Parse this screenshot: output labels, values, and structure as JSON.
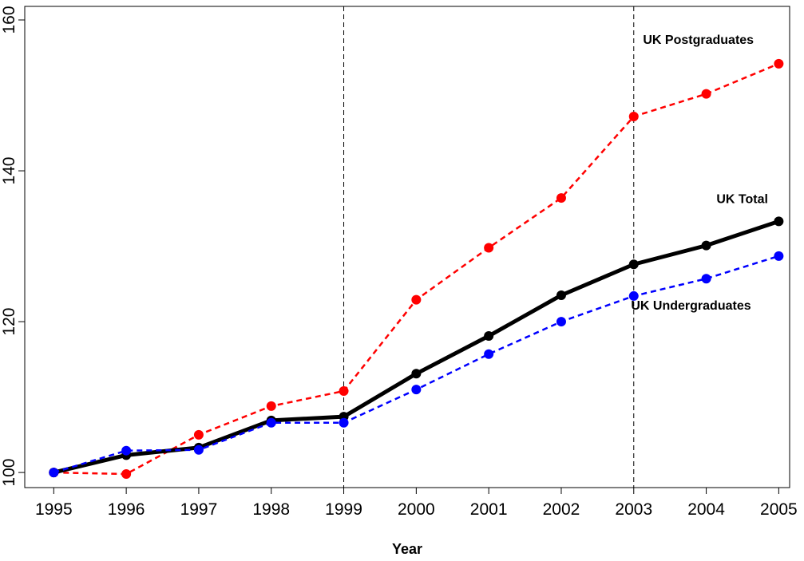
{
  "chart_data": {
    "type": "line",
    "x_label": "Year",
    "x": [
      1995,
      1996,
      1997,
      1998,
      1999,
      2000,
      2001,
      2002,
      2003,
      2004,
      2005
    ],
    "series": [
      {
        "name": "UK Postgraduates",
        "color": "#ff0000",
        "dash": true,
        "values": [
          100,
          99.8,
          105.0,
          108.8,
          110.8,
          122.9,
          129.8,
          136.4,
          147.2,
          150.2,
          154.2
        ]
      },
      {
        "name": "UK Total",
        "color": "#000000",
        "dash": false,
        "values": [
          100,
          102.3,
          103.3,
          106.9,
          107.4,
          113.1,
          118.1,
          123.5,
          127.6,
          130.1,
          133.3
        ]
      },
      {
        "name": "UK Undergraduates",
        "color": "#0000ff",
        "dash": true,
        "values": [
          100,
          102.9,
          103.0,
          106.6,
          106.6,
          111.0,
          115.7,
          120.0,
          123.4,
          125.7,
          128.7
        ]
      }
    ],
    "xlim": [
      1994.6,
      2005.15
    ],
    "ylim": [
      98,
      161.8
    ],
    "xticks": [
      1995,
      1996,
      1997,
      1998,
      1999,
      2000,
      2001,
      2002,
      2003,
      2004,
      2005
    ],
    "yticks": [
      100,
      120,
      140,
      160
    ],
    "vlines": [
      1999,
      2003
    ]
  }
}
